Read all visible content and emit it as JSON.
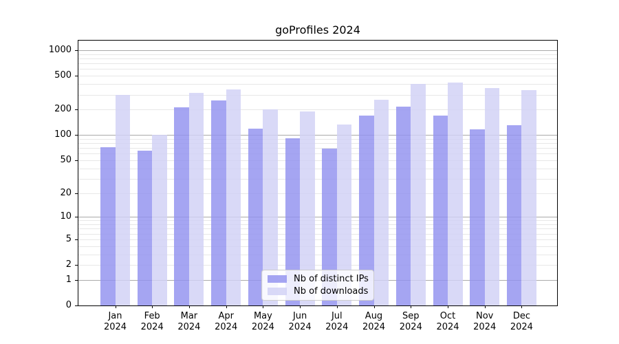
{
  "chart_data": {
    "type": "bar",
    "title": "goProfiles 2024",
    "categories": [
      "Jan 2024",
      "Feb 2024",
      "Mar 2024",
      "Apr 2024",
      "May 2024",
      "Jun 2024",
      "Jul 2024",
      "Aug 2024",
      "Sep 2024",
      "Oct 2024",
      "Nov 2024",
      "Dec 2024"
    ],
    "series": [
      {
        "name": "Nb of distinct IPs",
        "color": "#9191ef",
        "values": [
          71,
          65,
          212,
          257,
          118,
          92,
          69,
          171,
          217,
          169,
          116,
          131
        ]
      },
      {
        "name": "Nb of downloads",
        "color": "#d1d1f5",
        "values": [
          300,
          100,
          315,
          343,
          199,
          190,
          133,
          263,
          403,
          413,
          358,
          337
        ]
      }
    ],
    "yscale": "log1p",
    "yticks": [
      0,
      1,
      2,
      5,
      10,
      20,
      50,
      100,
      200,
      500,
      1000
    ],
    "ylim": [
      0,
      1300
    ],
    "xlabel": "",
    "ylabel": "",
    "grid": true,
    "legend_position": "lower center"
  },
  "colors": {
    "bar_distinct_ips": "#a5a5f2",
    "bar_downloads": "#d9d9f7",
    "grid_major": "#a9a9a9",
    "grid_minor": "#e7e7e7",
    "spine": "#000000"
  }
}
